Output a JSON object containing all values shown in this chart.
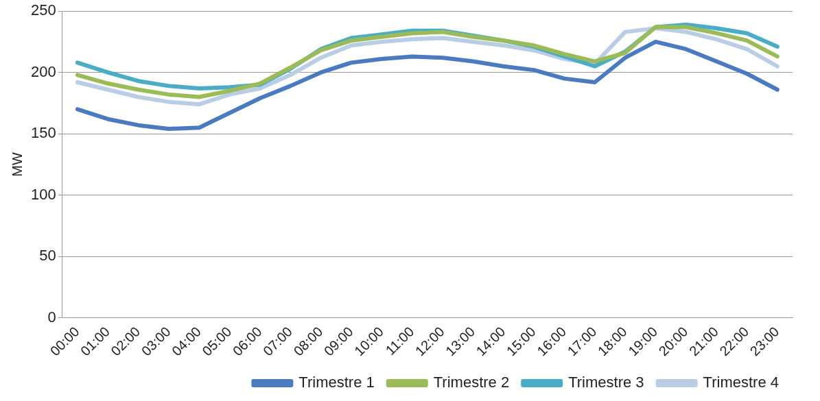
{
  "chart_data": {
    "type": "line",
    "ylabel": "MW",
    "categories": [
      "00:00",
      "01:00",
      "02:00",
      "03:00",
      "04:00",
      "05:00",
      "06:00",
      "07:00",
      "08:00",
      "09:00",
      "10:00",
      "11:00",
      "12:00",
      "13:00",
      "14:00",
      "15:00",
      "16:00",
      "17:00",
      "18:00",
      "19:00",
      "20:00",
      "21:00",
      "22:00",
      "23:00"
    ],
    "series": [
      {
        "name": "Trimestre 1",
        "color": "#4a7bc0",
        "values": [
          170,
          162,
          157,
          154,
          155,
          167,
          179,
          189,
          200,
          208,
          211,
          213,
          212,
          209,
          205,
          202,
          195,
          192,
          212,
          225,
          219,
          209,
          199,
          186
        ]
      },
      {
        "name": "Trimestre 2",
        "color": "#9bbb59",
        "values": [
          198,
          191,
          186,
          182,
          180,
          185,
          191,
          204,
          218,
          226,
          229,
          232,
          233,
          229,
          226,
          222,
          215,
          209,
          216,
          237,
          237,
          232,
          226,
          213
        ]
      },
      {
        "name": "Trimestre 3",
        "color": "#4bacc6",
        "values": [
          208,
          200,
          193,
          189,
          187,
          188,
          190,
          203,
          219,
          228,
          231,
          234,
          234,
          230,
          226,
          221,
          213,
          205,
          217,
          237,
          239,
          236,
          232,
          221
        ]
      },
      {
        "name": "Trimestre 4",
        "color": "#b9cde5",
        "values": [
          192,
          186,
          180,
          176,
          174,
          182,
          187,
          198,
          212,
          222,
          225,
          227,
          228,
          225,
          222,
          218,
          211,
          207,
          233,
          236,
          233,
          227,
          219,
          205
        ]
      }
    ],
    "ylim": [
      0,
      250
    ],
    "yticks": [
      0,
      50,
      100,
      150,
      200,
      250
    ],
    "grid": "y",
    "legend": "bottom",
    "marker": "none",
    "line_style": "solid"
  }
}
